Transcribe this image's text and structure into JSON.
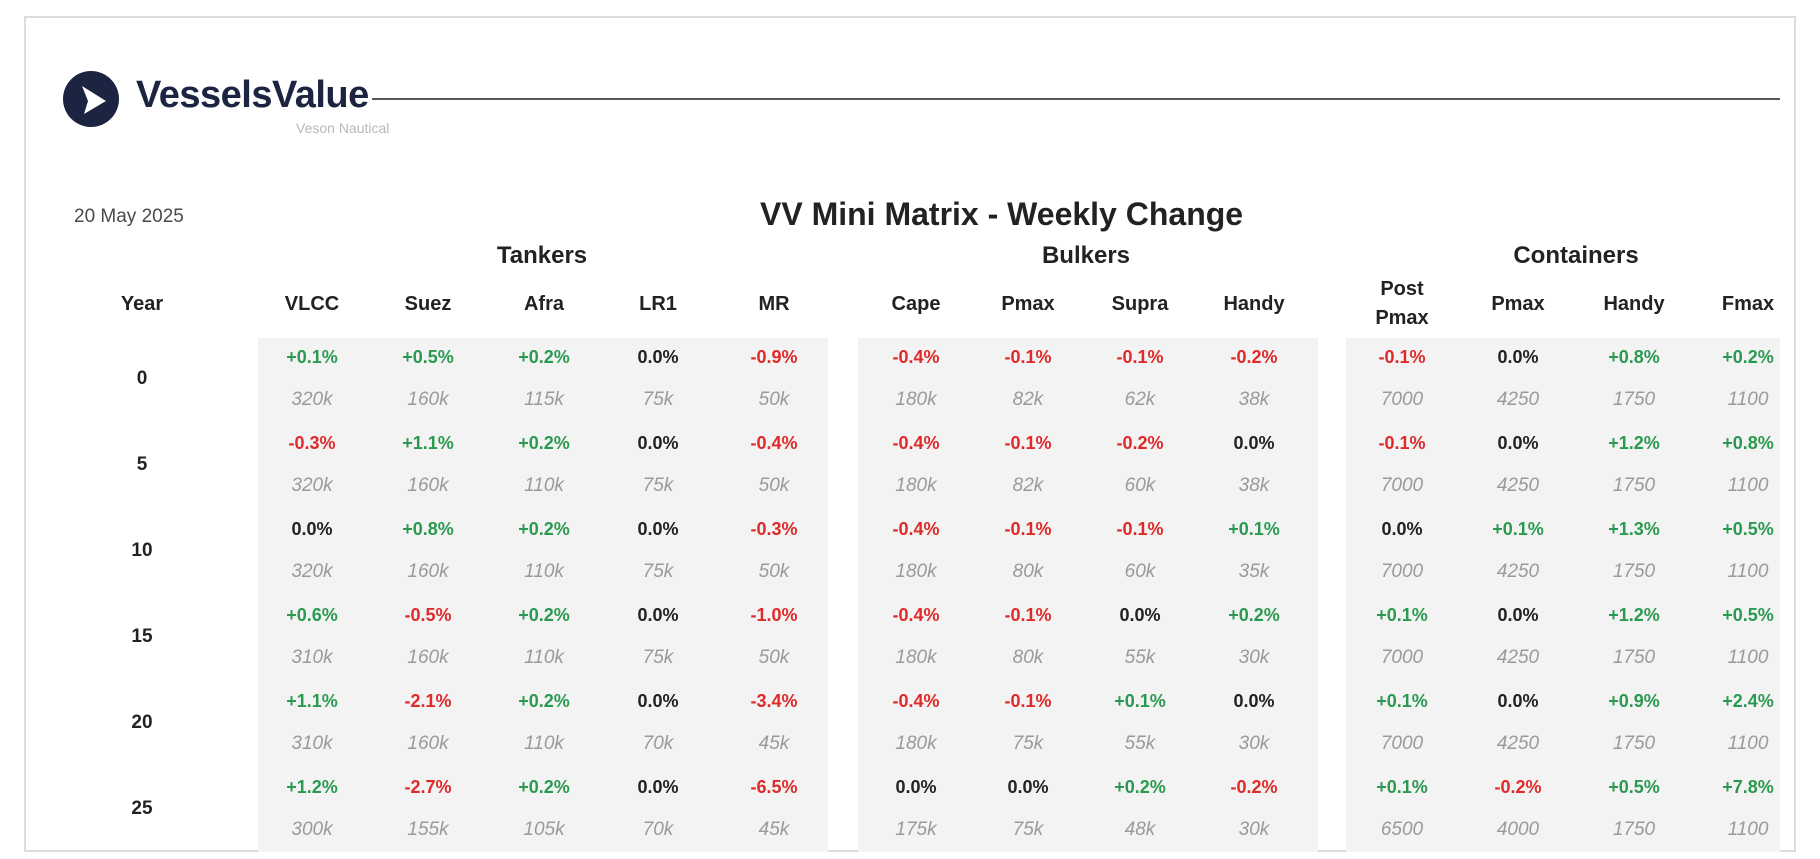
{
  "brand": {
    "name": "VesselsValue",
    "sub": "Veson Nautical",
    "color": "#1b2440"
  },
  "date": "20 May 2025",
  "title": "VV Mini Matrix - Weekly Change",
  "year_label": "Year",
  "groups": [
    {
      "name": "Tankers"
    },
    {
      "name": "Bulkers"
    },
    {
      "name": "Containers"
    }
  ],
  "columns": [
    {
      "label": "VLCC"
    },
    {
      "label": "Suez"
    },
    {
      "label": "Afra"
    },
    {
      "label": "LR1"
    },
    {
      "label": "MR"
    },
    {
      "label": "Cape"
    },
    {
      "label": "Pmax"
    },
    {
      "label": "Supra"
    },
    {
      "label": "Handy"
    },
    {
      "label": "Post\nPmax"
    },
    {
      "label": "Pmax"
    },
    {
      "label": "Handy"
    },
    {
      "label": "Fmax"
    }
  ],
  "colors": {
    "positive": "#2a9a50",
    "negative": "#e02a2a",
    "neutral": "#222222",
    "size": "#9a9a9a",
    "panel": "#f3f3f3"
  },
  "rows": [
    {
      "year": "0",
      "changes": [
        "+0.1%",
        "+0.5%",
        "+0.2%",
        "0.0%",
        "-0.9%",
        "-0.4%",
        "-0.1%",
        "-0.1%",
        "-0.2%",
        "-0.1%",
        "0.0%",
        "+0.8%",
        "+0.2%"
      ],
      "sizes": [
        "320k",
        "160k",
        "115k",
        "75k",
        "50k",
        "180k",
        "82k",
        "62k",
        "38k",
        "7000",
        "4250",
        "1750",
        "1100"
      ]
    },
    {
      "year": "5",
      "changes": [
        "-0.3%",
        "+1.1%",
        "+0.2%",
        "0.0%",
        "-0.4%",
        "-0.4%",
        "-0.1%",
        "-0.2%",
        "0.0%",
        "-0.1%",
        "0.0%",
        "+1.2%",
        "+0.8%"
      ],
      "sizes": [
        "320k",
        "160k",
        "110k",
        "75k",
        "50k",
        "180k",
        "82k",
        "60k",
        "38k",
        "7000",
        "4250",
        "1750",
        "1100"
      ]
    },
    {
      "year": "10",
      "changes": [
        "0.0%",
        "+0.8%",
        "+0.2%",
        "0.0%",
        "-0.3%",
        "-0.4%",
        "-0.1%",
        "-0.1%",
        "+0.1%",
        "0.0%",
        "+0.1%",
        "+1.3%",
        "+0.5%"
      ],
      "sizes": [
        "320k",
        "160k",
        "110k",
        "75k",
        "50k",
        "180k",
        "80k",
        "60k",
        "35k",
        "7000",
        "4250",
        "1750",
        "1100"
      ]
    },
    {
      "year": "15",
      "changes": [
        "+0.6%",
        "-0.5%",
        "+0.2%",
        "0.0%",
        "-1.0%",
        "-0.4%",
        "-0.1%",
        "0.0%",
        "+0.2%",
        "+0.1%",
        "0.0%",
        "+1.2%",
        "+0.5%"
      ],
      "sizes": [
        "310k",
        "160k",
        "110k",
        "75k",
        "50k",
        "180k",
        "80k",
        "55k",
        "30k",
        "7000",
        "4250",
        "1750",
        "1100"
      ]
    },
    {
      "year": "20",
      "changes": [
        "+1.1%",
        "-2.1%",
        "+0.2%",
        "0.0%",
        "-3.4%",
        "-0.4%",
        "-0.1%",
        "+0.1%",
        "0.0%",
        "+0.1%",
        "0.0%",
        "+0.9%",
        "+2.4%"
      ],
      "sizes": [
        "310k",
        "160k",
        "110k",
        "70k",
        "45k",
        "180k",
        "75k",
        "55k",
        "30k",
        "7000",
        "4250",
        "1750",
        "1100"
      ]
    },
    {
      "year": "25",
      "changes": [
        "+1.2%",
        "-2.7%",
        "+0.2%",
        "0.0%",
        "-6.5%",
        "0.0%",
        "0.0%",
        "+0.2%",
        "-0.2%",
        "+0.1%",
        "-0.2%",
        "+0.5%",
        "+7.8%"
      ],
      "sizes": [
        "300k",
        "155k",
        "105k",
        "70k",
        "45k",
        "175k",
        "75k",
        "48k",
        "30k",
        "6500",
        "4000",
        "1750",
        "1100"
      ]
    }
  ]
}
